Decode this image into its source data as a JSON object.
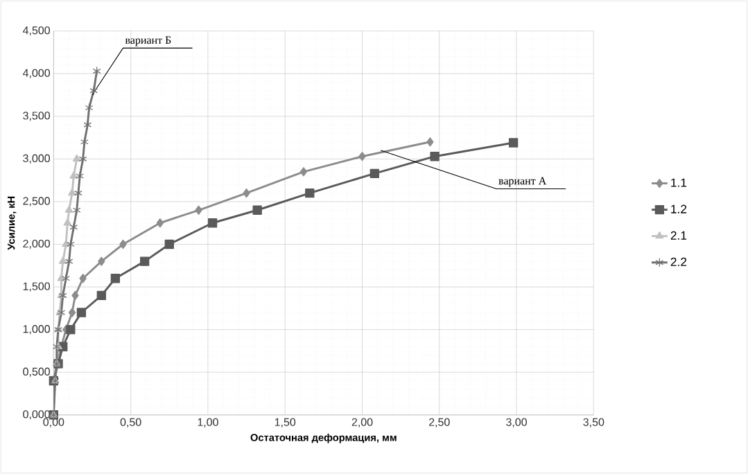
{
  "chart_data": {
    "type": "line",
    "xlabel": "Остаточная деформация, мм",
    "ylabel": "Усилие, кН",
    "xlim": [
      0,
      3.5
    ],
    "ylim": [
      0,
      4.5
    ],
    "xticks": [
      {
        "value": 0,
        "label": "0,00"
      },
      {
        "value": 0.5,
        "label": "0,50"
      },
      {
        "value": 1,
        "label": "1,00"
      },
      {
        "value": 1.5,
        "label": "1,50"
      },
      {
        "value": 2,
        "label": "2,00"
      },
      {
        "value": 2.5,
        "label": "2,50"
      },
      {
        "value": 3,
        "label": "3,00"
      },
      {
        "value": 3.5,
        "label": "3,50"
      }
    ],
    "yticks": [
      {
        "value": 0,
        "label": "0,000"
      },
      {
        "value": 0.5,
        "label": "0,500"
      },
      {
        "value": 1,
        "label": "1,000"
      },
      {
        "value": 1.5,
        "label": "1,500"
      },
      {
        "value": 2,
        "label": "2,000"
      },
      {
        "value": 2.5,
        "label": "2,500"
      },
      {
        "value": 3,
        "label": "3,000"
      },
      {
        "value": 3.5,
        "label": "3,500"
      },
      {
        "value": 4,
        "label": "4,000"
      },
      {
        "value": 4.5,
        "label": "4,500"
      }
    ],
    "grid": true,
    "legend": "right",
    "line_style": "solid",
    "series": [
      {
        "name": "1.1",
        "color": "#8c8c8c",
        "marker": "diamond",
        "x": [
          0,
          0.0,
          0.02,
          0.05,
          0.08,
          0.12,
          0.14,
          0.19,
          0.31,
          0.45,
          0.69,
          0.94,
          1.25,
          1.62,
          2.0,
          2.44
        ],
        "values": [
          0,
          0.4,
          0.6,
          0.8,
          1.0,
          1.2,
          1.4,
          1.6,
          1.8,
          2.0,
          2.25,
          2.4,
          2.6,
          2.85,
          3.03,
          3.2
        ]
      },
      {
        "name": "1.2",
        "color": "#5a5a5a",
        "marker": "square",
        "x": [
          0,
          0,
          0.03,
          0.06,
          0.11,
          0.18,
          0.31,
          0.4,
          0.59,
          0.75,
          1.03,
          1.32,
          1.66,
          2.08,
          2.47,
          2.98
        ],
        "values": [
          0,
          0.4,
          0.6,
          0.8,
          1.0,
          1.2,
          1.4,
          1.6,
          1.8,
          2.0,
          2.25,
          2.4,
          2.6,
          2.83,
          3.03,
          3.19
        ]
      },
      {
        "name": "2.1",
        "color": "#c0c0c0",
        "marker": "triangle",
        "x": [
          0,
          0.01,
          0.02,
          0.03,
          0.03,
          0.04,
          0.05,
          0.05,
          0.06,
          0.08,
          0.09,
          0.1,
          0.12,
          0.13,
          0.15
        ],
        "values": [
          0,
          0.4,
          0.6,
          0.8,
          1.0,
          1.2,
          1.4,
          1.6,
          1.8,
          2.0,
          2.25,
          2.4,
          2.6,
          2.8,
          3.0
        ]
      },
      {
        "name": "2.2",
        "color": "#707070",
        "marker": "cross",
        "x": [
          0,
          0.01,
          0.02,
          0.02,
          0.03,
          0.05,
          0.06,
          0.08,
          0.1,
          0.11,
          0.13,
          0.15,
          0.16,
          0.17,
          0.19,
          0.2,
          0.22,
          0.23,
          0.26,
          0.28
        ],
        "values": [
          0,
          0.4,
          0.6,
          0.8,
          1.0,
          1.2,
          1.4,
          1.6,
          1.8,
          2.0,
          2.2,
          2.4,
          2.6,
          2.8,
          3.0,
          3.2,
          3.4,
          3.6,
          3.8,
          4.03
        ]
      }
    ],
    "annotations": [
      {
        "text": "вариант Б",
        "x": 0.25,
        "y": 3.75
      },
      {
        "text": "вариант А",
        "x": 2.12,
        "y": 3.1
      }
    ]
  }
}
